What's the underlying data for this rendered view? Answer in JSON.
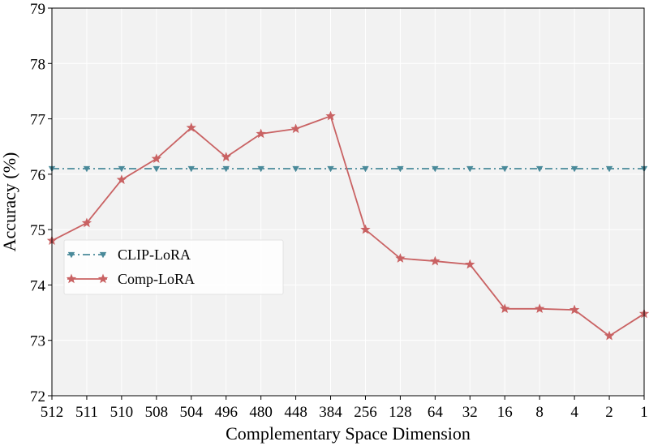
{
  "chart_data": {
    "type": "line",
    "title": "",
    "xlabel": "Complementary Space Dimension",
    "ylabel": "Accuracy (%)",
    "categories": [
      "512",
      "511",
      "510",
      "508",
      "504",
      "496",
      "480",
      "448",
      "384",
      "256",
      "128",
      "64",
      "32",
      "16",
      "8",
      "4",
      "2",
      "1"
    ],
    "ylim": [
      72,
      79
    ],
    "yticks": [
      72,
      73,
      74,
      75,
      76,
      77,
      78,
      79
    ],
    "grid": true,
    "legend_position": "center-left",
    "series": [
      {
        "name": "CLIP-LoRA",
        "color": "#4a8a9a",
        "style": "dash-dot",
        "marker": "triangle-down",
        "values": [
          76.1,
          76.1,
          76.1,
          76.1,
          76.1,
          76.1,
          76.1,
          76.1,
          76.1,
          76.1,
          76.1,
          76.1,
          76.1,
          76.1,
          76.1,
          76.1,
          76.1,
          76.1
        ]
      },
      {
        "name": "Comp-LoRA",
        "color": "#c96263",
        "style": "solid",
        "marker": "star",
        "values": [
          74.8,
          75.12,
          75.9,
          76.28,
          76.84,
          76.31,
          76.73,
          76.82,
          77.05,
          75.0,
          74.48,
          74.43,
          74.37,
          73.57,
          73.57,
          73.55,
          73.08,
          73.48
        ]
      }
    ]
  }
}
